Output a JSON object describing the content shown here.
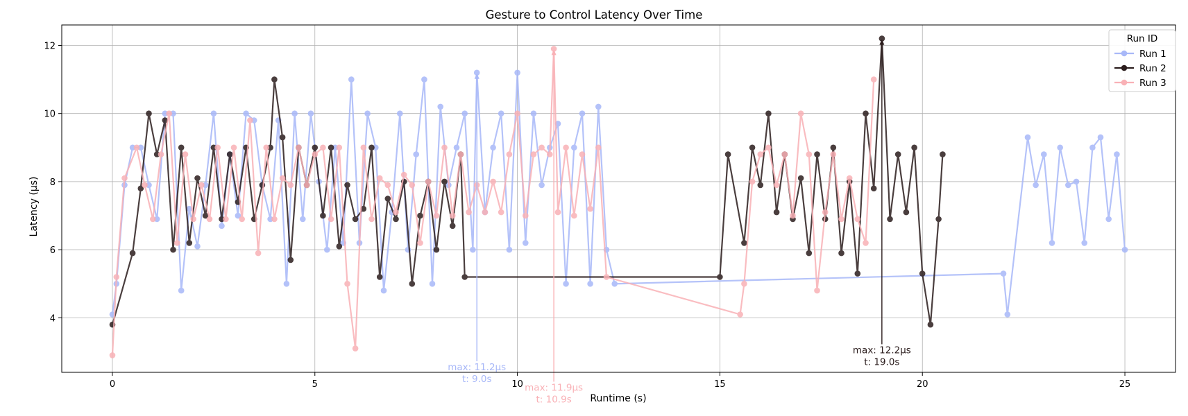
{
  "chart_data": {
    "type": "line",
    "title": "Gesture to Control Latency Over Time",
    "xlabel": "Runtime (s)",
    "ylabel": "Latency (µs)",
    "xlim": [
      -1.25,
      26.25
    ],
    "ylim": [
      2.4,
      12.6
    ],
    "xticks": [
      0,
      5,
      10,
      15,
      20,
      25
    ],
    "yticks": [
      4,
      6,
      8,
      10,
      12
    ],
    "grid": true,
    "legend": {
      "title": "Run ID",
      "placement": "top-right"
    },
    "series": [
      {
        "name": "Run 1",
        "color": "#a8b8f8",
        "x": [
          0,
          0.1,
          0.3,
          0.5,
          0.7,
          0.9,
          1.1,
          1.3,
          1.5,
          1.7,
          1.9,
          2.1,
          2.3,
          2.5,
          2.7,
          2.9,
          3.1,
          3.3,
          3.5,
          3.7,
          3.9,
          4.1,
          4.3,
          4.5,
          4.7,
          4.9,
          5.1,
          5.3,
          5.5,
          5.7,
          5.9,
          6.1,
          6.3,
          6.5,
          6.7,
          6.9,
          7.1,
          7.3,
          7.5,
          7.7,
          7.9,
          8.1,
          8.3,
          8.5,
          8.7,
          8.9,
          9.0,
          9.2,
          9.4,
          9.6,
          9.8,
          10.0,
          10.2,
          10.4,
          10.6,
          10.8,
          11.0,
          11.2,
          11.4,
          11.6,
          11.8,
          12.0,
          12.2,
          12.4,
          22.0,
          22.1,
          22.6,
          22.8,
          23.0,
          23.2,
          23.4,
          23.6,
          23.8,
          24.0,
          24.2,
          24.4,
          24.6,
          24.8,
          25.0
        ],
        "y": [
          4.1,
          5.0,
          7.9,
          9.0,
          9.0,
          7.9,
          6.9,
          10.0,
          10.0,
          4.8,
          7.2,
          6.1,
          7.9,
          10.0,
          6.7,
          8.8,
          7.0,
          10.0,
          9.8,
          7.9,
          6.9,
          9.8,
          5.0,
          10.0,
          6.9,
          10.0,
          8.0,
          6.0,
          9.0,
          6.2,
          11.0,
          6.2,
          10.0,
          9.0,
          4.8,
          7.1,
          10.0,
          6.0,
          8.8,
          11.0,
          5.0,
          10.2,
          7.9,
          9.0,
          10.0,
          6.0,
          11.2,
          7.1,
          9.0,
          10.0,
          6.0,
          11.2,
          6.2,
          10.0,
          7.9,
          9.0,
          9.7,
          5.0,
          9.0,
          10.0,
          5.0,
          10.2,
          6.0,
          5.0,
          5.3,
          4.1,
          9.3,
          7.9,
          8.8,
          6.2,
          9.0,
          7.9,
          8.0,
          6.2,
          9.0,
          9.3,
          6.9,
          8.8,
          6.0
        ]
      },
      {
        "name": "Run 2",
        "color": "#2b1d1d",
        "x": [
          0,
          0.5,
          0.7,
          0.9,
          1.1,
          1.3,
          1.5,
          1.7,
          1.9,
          2.1,
          2.3,
          2.5,
          2.7,
          2.9,
          3.1,
          3.3,
          3.5,
          3.7,
          3.9,
          4.0,
          4.2,
          4.4,
          4.6,
          4.8,
          5.0,
          5.2,
          5.4,
          5.6,
          5.8,
          6.0,
          6.2,
          6.4,
          6.6,
          6.8,
          7.0,
          7.2,
          7.4,
          7.6,
          7.8,
          8.0,
          8.2,
          8.4,
          8.6,
          8.7,
          15.0,
          15.2,
          15.6,
          15.8,
          16.0,
          16.2,
          16.4,
          16.6,
          16.8,
          17.0,
          17.2,
          17.4,
          17.6,
          17.8,
          18.0,
          18.2,
          18.4,
          18.6,
          18.8,
          19.0,
          19.2,
          19.4,
          19.6,
          19.8,
          20.0,
          20.2,
          20.4,
          20.5
        ],
        "y": [
          3.8,
          5.9,
          7.8,
          10.0,
          8.8,
          9.8,
          6.0,
          9.0,
          6.2,
          8.1,
          7.0,
          9.0,
          6.9,
          8.8,
          7.4,
          9.0,
          6.9,
          7.9,
          9.0,
          11.0,
          9.3,
          5.7,
          9.0,
          7.9,
          9.0,
          7.0,
          9.0,
          6.1,
          7.9,
          6.9,
          7.2,
          9.0,
          5.2,
          7.5,
          6.9,
          8.0,
          5.0,
          7.0,
          8.0,
          6.0,
          8.0,
          6.7,
          8.8,
          5.2,
          5.2,
          8.8,
          6.2,
          9.0,
          7.9,
          10.0,
          7.1,
          8.8,
          6.9,
          8.1,
          5.9,
          8.8,
          6.9,
          9.0,
          5.9,
          8.0,
          5.3,
          10.0,
          7.8,
          12.2,
          6.9,
          8.8,
          7.1,
          9.0,
          5.3,
          3.8,
          6.9,
          8.8
        ]
      },
      {
        "name": "Run 3",
        "color": "#f9b1b6",
        "x": [
          0,
          0.1,
          0.3,
          0.6,
          0.8,
          1.0,
          1.2,
          1.4,
          1.6,
          1.8,
          2.0,
          2.2,
          2.4,
          2.6,
          2.8,
          3.0,
          3.2,
          3.4,
          3.6,
          3.8,
          4.0,
          4.2,
          4.4,
          4.6,
          4.8,
          5.0,
          5.2,
          5.4,
          5.6,
          5.8,
          6.0,
          6.2,
          6.4,
          6.6,
          6.8,
          7.0,
          7.2,
          7.4,
          7.6,
          7.8,
          8.0,
          8.2,
          8.4,
          8.6,
          8.8,
          9.0,
          9.2,
          9.4,
          9.6,
          9.8,
          10.0,
          10.2,
          10.4,
          10.6,
          10.8,
          10.9,
          11.0,
          11.2,
          11.4,
          11.6,
          11.8,
          12.0,
          12.2,
          15.5,
          15.6,
          15.8,
          16.0,
          16.2,
          16.4,
          16.6,
          16.8,
          17.0,
          17.2,
          17.4,
          17.6,
          17.8,
          18.0,
          18.2,
          18.4,
          18.6,
          18.8
        ],
        "y": [
          2.9,
          5.2,
          8.1,
          9.0,
          7.9,
          6.9,
          8.8,
          10.0,
          6.2,
          8.8,
          6.9,
          7.9,
          6.9,
          9.0,
          6.9,
          9.0,
          6.9,
          9.8,
          5.9,
          9.0,
          6.9,
          8.1,
          7.9,
          9.0,
          7.9,
          8.8,
          9.0,
          6.9,
          9.0,
          5.0,
          3.1,
          9.0,
          6.9,
          8.1,
          7.9,
          7.1,
          8.2,
          7.9,
          6.2,
          8.0,
          7.0,
          9.0,
          7.0,
          8.8,
          7.1,
          7.9,
          7.1,
          8.0,
          7.1,
          8.8,
          10.0,
          7.0,
          8.8,
          9.0,
          8.8,
          11.9,
          7.1,
          9.0,
          7.0,
          8.8,
          7.2,
          9.0,
          5.2,
          4.1,
          5.0,
          8.0,
          8.8,
          9.0,
          7.9,
          8.8,
          7.0,
          10.0,
          8.8,
          4.8,
          7.1,
          8.8,
          6.9,
          8.1,
          6.9,
          6.2,
          11.0
        ]
      }
    ],
    "annotations": [
      {
        "series": "Run 1",
        "x": 9.0,
        "y": 11.2,
        "text_line1": "max: 11.2µs",
        "text_line2": "t: 9.0s",
        "text_y": 2.4
      },
      {
        "series": "Run 3",
        "x": 10.9,
        "y": 11.9,
        "text_line1": "max: 11.9µs",
        "text_line2": "t: 10.9s",
        "text_y": 1.8
      },
      {
        "series": "Run 2",
        "x": 19.0,
        "y": 12.2,
        "text_line1": "max: 12.2µs",
        "text_line2": "t: 19.0s",
        "text_y": 2.9
      }
    ]
  }
}
